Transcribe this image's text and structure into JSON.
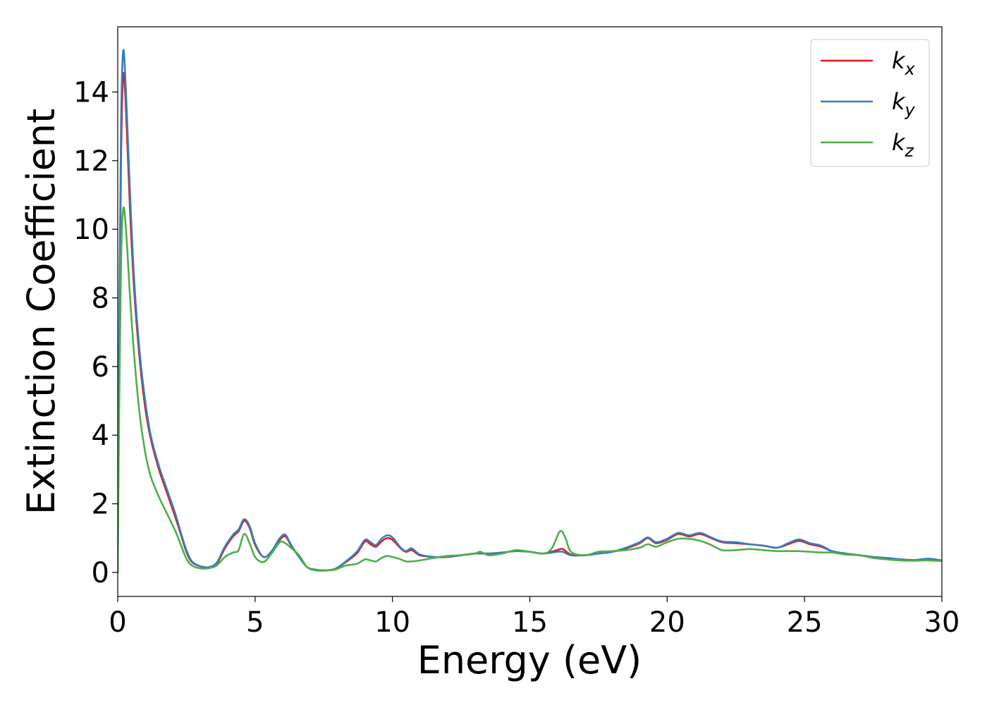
{
  "chart_data": {
    "type": "line",
    "title": "",
    "xlabel": "Energy (eV)",
    "ylabel": "Extinction Coefficient",
    "xlim": [
      0,
      30
    ],
    "ylim": [
      -0.7,
      15.9
    ],
    "xticks": [
      0,
      5,
      10,
      15,
      20,
      25,
      30
    ],
    "yticks": [
      0,
      2,
      4,
      6,
      8,
      10,
      12,
      14
    ],
    "grid": false,
    "legend_position": "top-right",
    "series": [
      {
        "name": "k_x",
        "label_base": "k",
        "label_sub": "x",
        "color": "#e41a1c",
        "points": [
          [
            0,
            0
          ],
          [
            0.05,
            6
          ],
          [
            0.12,
            12
          ],
          [
            0.2,
            14.5
          ],
          [
            0.3,
            13.5
          ],
          [
            0.45,
            10.5
          ],
          [
            0.6,
            8.2
          ],
          [
            0.8,
            6.2
          ],
          [
            1.0,
            4.8
          ],
          [
            1.2,
            3.9
          ],
          [
            1.5,
            3.0
          ],
          [
            1.8,
            2.3
          ],
          [
            2.1,
            1.6
          ],
          [
            2.3,
            1.1
          ],
          [
            2.5,
            0.6
          ],
          [
            2.7,
            0.3
          ],
          [
            3.0,
            0.18
          ],
          [
            3.3,
            0.15
          ],
          [
            3.6,
            0.25
          ],
          [
            3.9,
            0.7
          ],
          [
            4.2,
            1.05
          ],
          [
            4.4,
            1.2
          ],
          [
            4.6,
            1.5
          ],
          [
            4.8,
            1.3
          ],
          [
            5.0,
            0.8
          ],
          [
            5.3,
            0.45
          ],
          [
            5.6,
            0.6
          ],
          [
            5.9,
            0.95
          ],
          [
            6.1,
            1.05
          ],
          [
            6.3,
            0.8
          ],
          [
            6.6,
            0.45
          ],
          [
            6.9,
            0.15
          ],
          [
            7.2,
            0.08
          ],
          [
            7.5,
            0.06
          ],
          [
            7.9,
            0.1
          ],
          [
            8.3,
            0.3
          ],
          [
            8.7,
            0.55
          ],
          [
            9.0,
            0.9
          ],
          [
            9.2,
            0.82
          ],
          [
            9.4,
            0.75
          ],
          [
            9.6,
            0.9
          ],
          [
            9.8,
            1.0
          ],
          [
            10.0,
            0.95
          ],
          [
            10.3,
            0.7
          ],
          [
            10.5,
            0.6
          ],
          [
            10.7,
            0.65
          ],
          [
            11.0,
            0.5
          ],
          [
            11.5,
            0.45
          ],
          [
            12.0,
            0.45
          ],
          [
            12.5,
            0.5
          ],
          [
            13.0,
            0.55
          ],
          [
            13.5,
            0.55
          ],
          [
            14.0,
            0.58
          ],
          [
            14.5,
            0.62
          ],
          [
            15.0,
            0.6
          ],
          [
            15.5,
            0.55
          ],
          [
            16.0,
            0.65
          ],
          [
            16.2,
            0.68
          ],
          [
            16.5,
            0.52
          ],
          [
            17.0,
            0.5
          ],
          [
            17.5,
            0.55
          ],
          [
            18.0,
            0.6
          ],
          [
            18.5,
            0.7
          ],
          [
            19.0,
            0.85
          ],
          [
            19.3,
            1.0
          ],
          [
            19.6,
            0.85
          ],
          [
            20.0,
            0.95
          ],
          [
            20.4,
            1.12
          ],
          [
            20.8,
            1.05
          ],
          [
            21.2,
            1.12
          ],
          [
            21.6,
            1.0
          ],
          [
            22.0,
            0.88
          ],
          [
            22.5,
            0.85
          ],
          [
            23.0,
            0.82
          ],
          [
            23.5,
            0.78
          ],
          [
            24.0,
            0.72
          ],
          [
            24.4,
            0.82
          ],
          [
            24.8,
            0.92
          ],
          [
            25.2,
            0.82
          ],
          [
            25.6,
            0.75
          ],
          [
            26.0,
            0.62
          ],
          [
            26.5,
            0.55
          ],
          [
            27.0,
            0.5
          ],
          [
            27.5,
            0.45
          ],
          [
            28.0,
            0.42
          ],
          [
            28.5,
            0.38
          ],
          [
            29.0,
            0.36
          ],
          [
            29.5,
            0.38
          ],
          [
            30.0,
            0.35
          ]
        ]
      },
      {
        "name": "k_y",
        "label_base": "k",
        "label_sub": "y",
        "color": "#377eb8",
        "points": [
          [
            0,
            0
          ],
          [
            0.05,
            6.5
          ],
          [
            0.12,
            13
          ],
          [
            0.2,
            15.2
          ],
          [
            0.3,
            14.0
          ],
          [
            0.45,
            11.0
          ],
          [
            0.6,
            8.5
          ],
          [
            0.8,
            6.4
          ],
          [
            1.0,
            5.0
          ],
          [
            1.2,
            4.0
          ],
          [
            1.5,
            3.1
          ],
          [
            1.8,
            2.4
          ],
          [
            2.1,
            1.7
          ],
          [
            2.3,
            1.15
          ],
          [
            2.5,
            0.65
          ],
          [
            2.7,
            0.32
          ],
          [
            3.0,
            0.18
          ],
          [
            3.3,
            0.15
          ],
          [
            3.6,
            0.28
          ],
          [
            3.9,
            0.75
          ],
          [
            4.2,
            1.1
          ],
          [
            4.4,
            1.25
          ],
          [
            4.6,
            1.55
          ],
          [
            4.8,
            1.35
          ],
          [
            5.0,
            0.85
          ],
          [
            5.3,
            0.45
          ],
          [
            5.6,
            0.62
          ],
          [
            5.9,
            1.0
          ],
          [
            6.1,
            1.1
          ],
          [
            6.3,
            0.82
          ],
          [
            6.6,
            0.45
          ],
          [
            6.9,
            0.15
          ],
          [
            7.2,
            0.08
          ],
          [
            7.5,
            0.06
          ],
          [
            7.9,
            0.1
          ],
          [
            8.3,
            0.32
          ],
          [
            8.7,
            0.6
          ],
          [
            9.0,
            0.95
          ],
          [
            9.2,
            0.88
          ],
          [
            9.4,
            0.8
          ],
          [
            9.6,
            0.98
          ],
          [
            9.8,
            1.08
          ],
          [
            10.0,
            1.02
          ],
          [
            10.3,
            0.72
          ],
          [
            10.5,
            0.62
          ],
          [
            10.7,
            0.7
          ],
          [
            11.0,
            0.52
          ],
          [
            11.5,
            0.45
          ],
          [
            12.0,
            0.45
          ],
          [
            12.5,
            0.5
          ],
          [
            13.0,
            0.55
          ],
          [
            13.5,
            0.55
          ],
          [
            14.0,
            0.58
          ],
          [
            14.5,
            0.62
          ],
          [
            15.0,
            0.6
          ],
          [
            15.5,
            0.55
          ],
          [
            16.0,
            0.6
          ],
          [
            16.2,
            0.6
          ],
          [
            16.5,
            0.5
          ],
          [
            17.0,
            0.5
          ],
          [
            17.5,
            0.55
          ],
          [
            18.0,
            0.6
          ],
          [
            18.5,
            0.72
          ],
          [
            19.0,
            0.88
          ],
          [
            19.3,
            1.02
          ],
          [
            19.6,
            0.88
          ],
          [
            20.0,
            0.98
          ],
          [
            20.4,
            1.15
          ],
          [
            20.8,
            1.08
          ],
          [
            21.2,
            1.15
          ],
          [
            21.6,
            1.02
          ],
          [
            22.0,
            0.9
          ],
          [
            22.5,
            0.88
          ],
          [
            23.0,
            0.82
          ],
          [
            23.5,
            0.78
          ],
          [
            24.0,
            0.72
          ],
          [
            24.4,
            0.85
          ],
          [
            24.8,
            0.96
          ],
          [
            25.2,
            0.85
          ],
          [
            25.6,
            0.78
          ],
          [
            26.0,
            0.62
          ],
          [
            26.5,
            0.55
          ],
          [
            27.0,
            0.5
          ],
          [
            27.5,
            0.45
          ],
          [
            28.0,
            0.42
          ],
          [
            28.5,
            0.38
          ],
          [
            29.0,
            0.36
          ],
          [
            29.5,
            0.4
          ],
          [
            30.0,
            0.35
          ]
        ]
      },
      {
        "name": "k_z",
        "label_base": "k",
        "label_sub": "z",
        "color": "#4daf4a",
        "points": [
          [
            0,
            0
          ],
          [
            0.05,
            4.5
          ],
          [
            0.12,
            9
          ],
          [
            0.2,
            10.6
          ],
          [
            0.3,
            10.0
          ],
          [
            0.45,
            8.0
          ],
          [
            0.6,
            6.3
          ],
          [
            0.8,
            4.6
          ],
          [
            1.0,
            3.5
          ],
          [
            1.2,
            2.8
          ],
          [
            1.5,
            2.2
          ],
          [
            1.8,
            1.7
          ],
          [
            2.1,
            1.2
          ],
          [
            2.3,
            0.8
          ],
          [
            2.5,
            0.4
          ],
          [
            2.7,
            0.2
          ],
          [
            3.0,
            0.12
          ],
          [
            3.3,
            0.12
          ],
          [
            3.6,
            0.2
          ],
          [
            3.9,
            0.45
          ],
          [
            4.2,
            0.58
          ],
          [
            4.4,
            0.65
          ],
          [
            4.6,
            1.12
          ],
          [
            4.8,
            0.85
          ],
          [
            5.0,
            0.45
          ],
          [
            5.3,
            0.3
          ],
          [
            5.6,
            0.55
          ],
          [
            5.9,
            0.88
          ],
          [
            6.1,
            0.85
          ],
          [
            6.3,
            0.72
          ],
          [
            6.6,
            0.5
          ],
          [
            6.9,
            0.15
          ],
          [
            7.2,
            0.06
          ],
          [
            7.5,
            0.05
          ],
          [
            7.9,
            0.08
          ],
          [
            8.3,
            0.2
          ],
          [
            8.7,
            0.25
          ],
          [
            9.0,
            0.38
          ],
          [
            9.2,
            0.35
          ],
          [
            9.4,
            0.32
          ],
          [
            9.6,
            0.42
          ],
          [
            9.8,
            0.48
          ],
          [
            10.0,
            0.45
          ],
          [
            10.3,
            0.38
          ],
          [
            10.5,
            0.32
          ],
          [
            10.7,
            0.32
          ],
          [
            11.0,
            0.35
          ],
          [
            11.5,
            0.42
          ],
          [
            12.0,
            0.48
          ],
          [
            12.5,
            0.5
          ],
          [
            13.0,
            0.55
          ],
          [
            13.2,
            0.6
          ],
          [
            13.5,
            0.5
          ],
          [
            14.0,
            0.55
          ],
          [
            14.5,
            0.65
          ],
          [
            15.0,
            0.6
          ],
          [
            15.5,
            0.55
          ],
          [
            15.8,
            0.7
          ],
          [
            16.1,
            1.2
          ],
          [
            16.3,
            1.0
          ],
          [
            16.5,
            0.6
          ],
          [
            17.0,
            0.5
          ],
          [
            17.5,
            0.6
          ],
          [
            18.0,
            0.62
          ],
          [
            18.5,
            0.65
          ],
          [
            19.0,
            0.72
          ],
          [
            19.3,
            0.82
          ],
          [
            19.6,
            0.75
          ],
          [
            20.0,
            0.88
          ],
          [
            20.4,
            0.98
          ],
          [
            20.8,
            0.98
          ],
          [
            21.2,
            0.92
          ],
          [
            21.6,
            0.8
          ],
          [
            22.0,
            0.65
          ],
          [
            22.5,
            0.65
          ],
          [
            23.0,
            0.68
          ],
          [
            23.5,
            0.65
          ],
          [
            24.0,
            0.62
          ],
          [
            24.4,
            0.62
          ],
          [
            24.8,
            0.62
          ],
          [
            25.2,
            0.6
          ],
          [
            25.6,
            0.58
          ],
          [
            26.0,
            0.58
          ],
          [
            26.5,
            0.52
          ],
          [
            27.0,
            0.5
          ],
          [
            27.5,
            0.42
          ],
          [
            28.0,
            0.38
          ],
          [
            28.5,
            0.35
          ],
          [
            29.0,
            0.34
          ],
          [
            29.5,
            0.35
          ],
          [
            30.0,
            0.33
          ]
        ]
      }
    ]
  }
}
